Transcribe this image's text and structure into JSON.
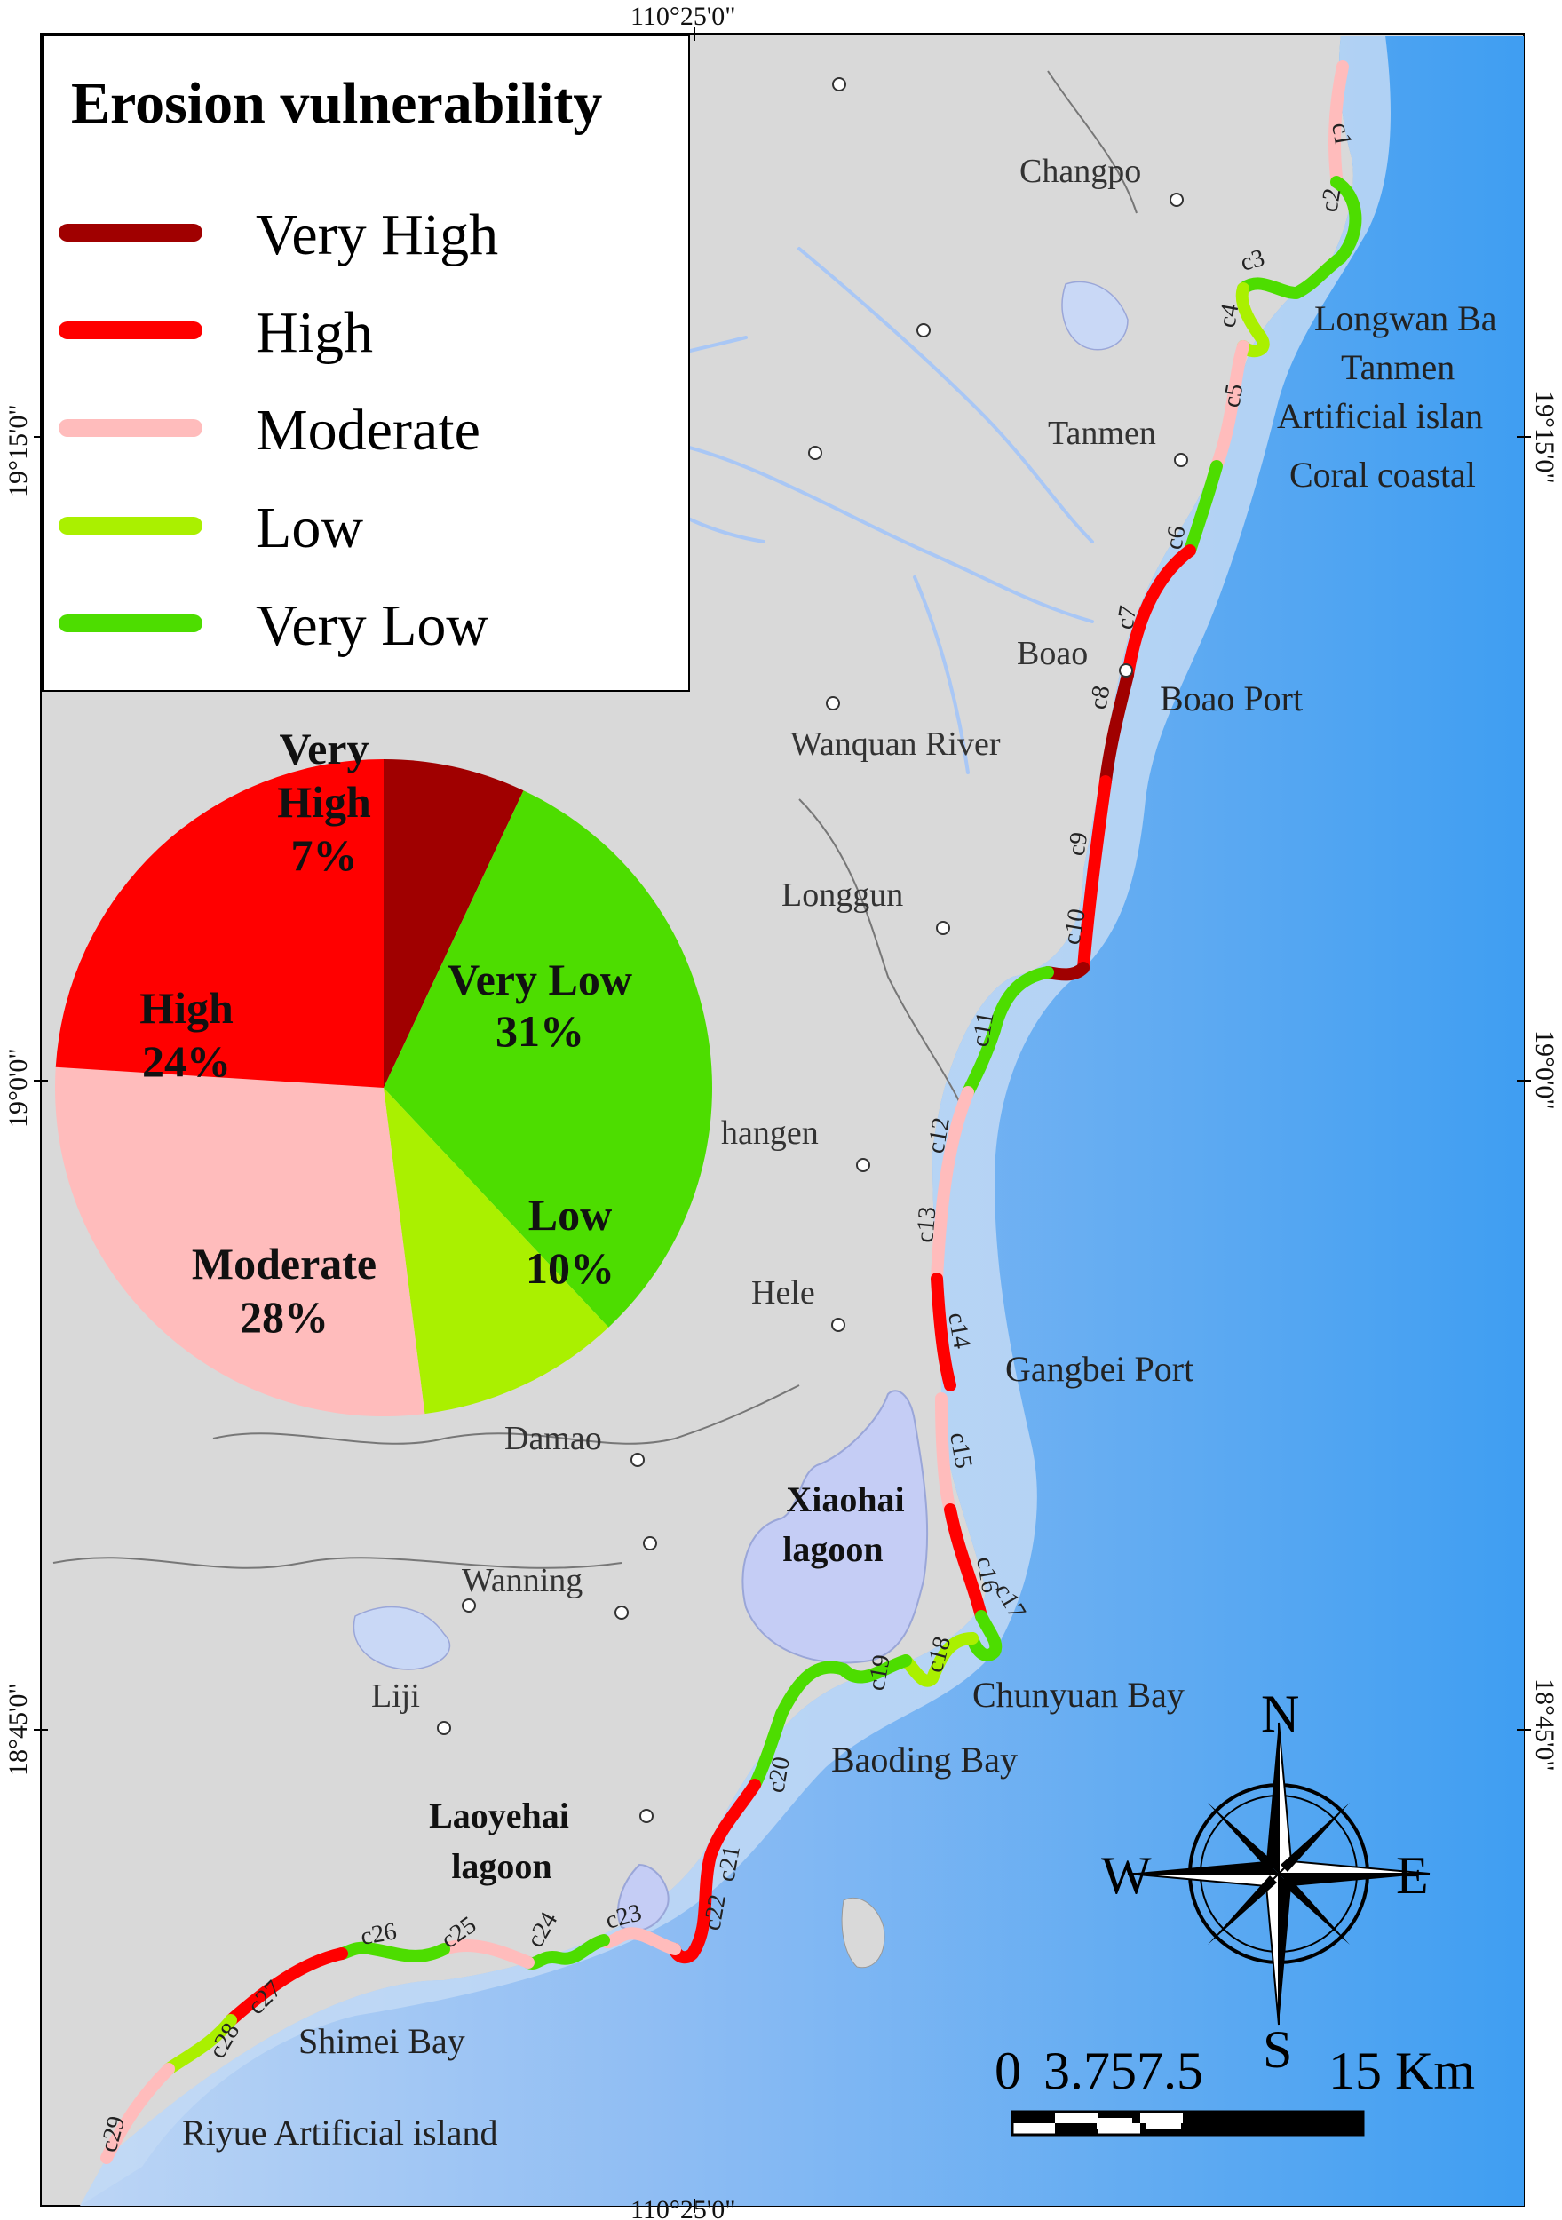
{
  "legend": {
    "title": "Erosion vulnerability",
    "items": [
      {
        "label": "Very High",
        "color": "#a00000"
      },
      {
        "label": "High",
        "color": "#ff0000"
      },
      {
        "label": "Moderate",
        "color": "#ffbcbc"
      },
      {
        "label": "Low",
        "color": "#aaf000"
      },
      {
        "label": "Very Low",
        "color": "#4ddd00"
      }
    ]
  },
  "pie": {
    "slices": [
      {
        "category": "Very High",
        "value": 7,
        "line1": "Very",
        "line2": "High",
        "pct": "7%",
        "color": "#a00000"
      },
      {
        "category": "Very Low",
        "value": 31,
        "line1": "Very Low",
        "pct": "31%",
        "color": "#4ddd00"
      },
      {
        "category": "Low",
        "value": 10,
        "line1": "Low",
        "pct": "10%",
        "color": "#aaf000"
      },
      {
        "category": "Moderate",
        "value": 28,
        "line1": "Moderate",
        "pct": "28%",
        "color": "#ffbcbc"
      },
      {
        "category": "High",
        "value": 24,
        "line1": "High",
        "pct": "24%",
        "color": "#ff0000"
      }
    ]
  },
  "coordinates": {
    "top": "110°25'0\"",
    "bottom": "110°25'0\"",
    "left": [
      "19°15'0\"",
      "19°0'0\"",
      "18°45'0\""
    ],
    "right": [
      "19°15'0\"",
      "19°0'0\"",
      "18°45'0\""
    ]
  },
  "places": [
    {
      "id": "changpo",
      "text": "Changpo"
    },
    {
      "id": "tanmen",
      "text": "Tanmen"
    },
    {
      "id": "boao",
      "text": "Boao"
    },
    {
      "id": "wanquan",
      "text": "Wanquan River"
    },
    {
      "id": "longgun",
      "text": "Longgun"
    },
    {
      "id": "changen",
      "text": "hangen"
    },
    {
      "id": "hele",
      "text": "Hele"
    },
    {
      "id": "damao",
      "text": "Damao"
    },
    {
      "id": "wanning",
      "text": "Wanning"
    },
    {
      "id": "liji",
      "text": "Liji"
    }
  ],
  "coastal_labels": [
    {
      "id": "longwan",
      "text": "Longwan Ba"
    },
    {
      "id": "tanmen-art",
      "text": "Tanmen"
    },
    {
      "id": "art-island",
      "text": "Artificial islan"
    },
    {
      "id": "coral",
      "text": "Coral coastal"
    },
    {
      "id": "boao-port",
      "text": "Boao Port"
    },
    {
      "id": "gangbei",
      "text": "Gangbei Port"
    },
    {
      "id": "chunyuan",
      "text": "Chunyuan Bay"
    },
    {
      "id": "baoding",
      "text": "Baoding Bay"
    },
    {
      "id": "shimei",
      "text": "Shimei Bay"
    },
    {
      "id": "riyue",
      "text": "Riyue Artificial island"
    }
  ],
  "lagoons": [
    {
      "id": "xiaohai",
      "line1": "Xiaohai",
      "line2": "lagoon"
    },
    {
      "id": "laoyehai",
      "line1": "Laoyehai",
      "line2": "lagoon"
    }
  ],
  "segments": [
    "c1",
    "c2",
    "c3",
    "c4",
    "c5",
    "c6",
    "c7",
    "c8",
    "c9",
    "c10",
    "c11",
    "c12",
    "c13",
    "c14",
    "c15",
    "c16",
    "c17",
    "c18",
    "c19",
    "c20",
    "c21",
    "c22",
    "c23",
    "c24",
    "c25",
    "c26",
    "c27",
    "c28",
    "c29"
  ],
  "compass": {
    "n": "N",
    "s": "S",
    "e": "E",
    "w": "W"
  },
  "scale": {
    "zero": "0",
    "mid": "3.757.5",
    "end": "15 Km"
  }
}
